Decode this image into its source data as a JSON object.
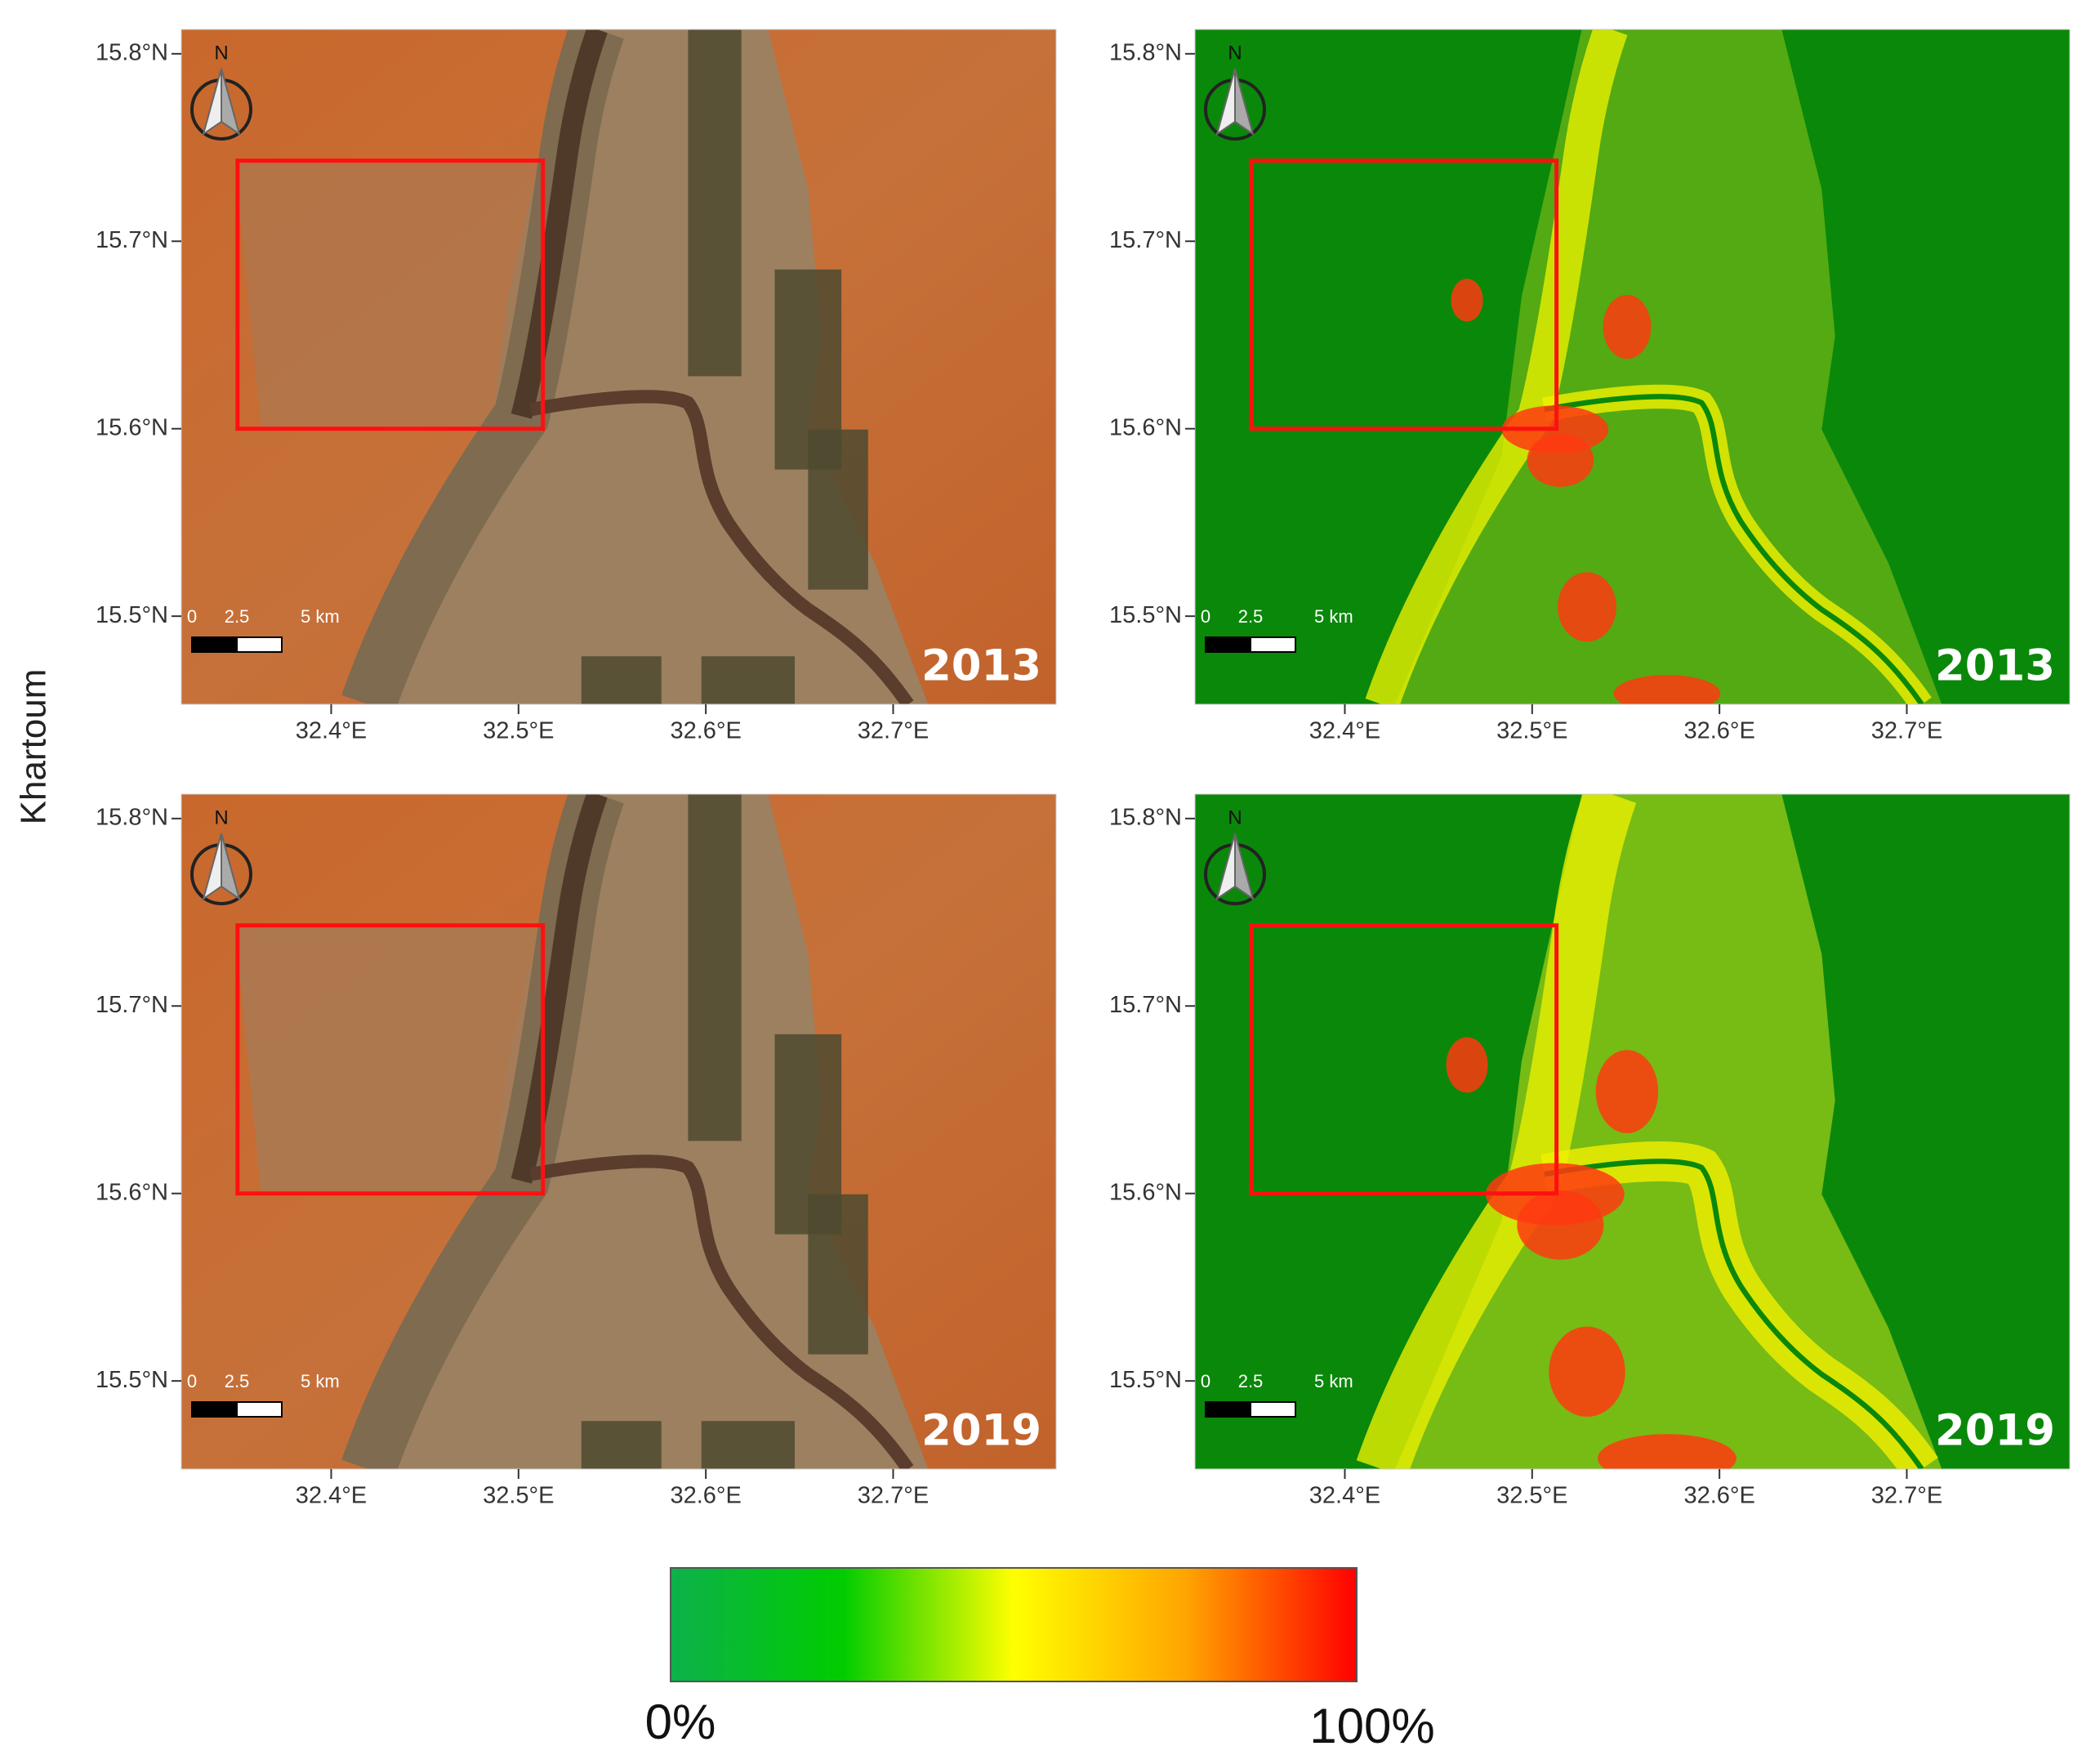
{
  "row_label": "Khartoum",
  "lat_range": [
    15.453,
    15.813
  ],
  "lon_range": [
    32.32,
    32.787
  ],
  "lat_ticks": [
    {
      "value": 15.5,
      "label": "15.5°N"
    },
    {
      "value": 15.6,
      "label": "15.6°N"
    },
    {
      "value": 15.7,
      "label": "15.7°N"
    },
    {
      "value": 15.8,
      "label": "15.8°N"
    }
  ],
  "lon_ticks": [
    {
      "value": 32.4,
      "label": "32.4°E"
    },
    {
      "value": 32.5,
      "label": "32.5°E"
    },
    {
      "value": 32.6,
      "label": "32.6°E"
    },
    {
      "value": 32.7,
      "label": "32.7°E"
    }
  ],
  "study_box": {
    "lon": [
      32.35,
      32.513
    ],
    "lat": [
      15.6,
      15.743
    ]
  },
  "north_label": "N",
  "scale_bar": [
    "0",
    "2.5",
    "5 km"
  ],
  "panels": [
    {
      "year": "2013",
      "type": "satellite"
    },
    {
      "year": "2013",
      "type": "built-up"
    },
    {
      "year": "2019",
      "type": "satellite"
    },
    {
      "year": "2019",
      "type": "built-up"
    }
  ],
  "colorbar": {
    "min_label": "0%",
    "max_label": "100%"
  }
}
